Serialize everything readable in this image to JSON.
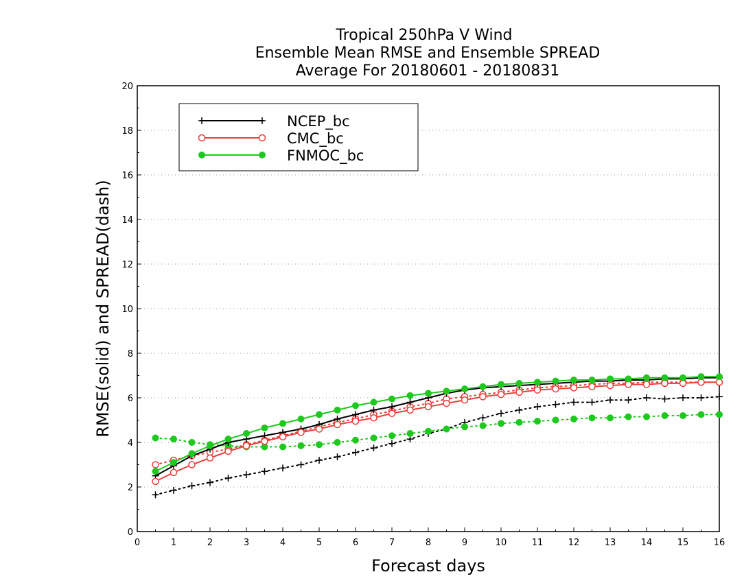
{
  "chart_data": {
    "type": "line",
    "title": [
      "Tropical 250hPa V Wind",
      "Ensemble Mean RMSE and Ensemble SPREAD",
      "Average For 20180601 - 20180831"
    ],
    "xlabel": "Forecast days",
    "ylabel": "RMSE(solid) and SPREAD(dash)",
    "xlim": [
      0,
      16
    ],
    "ylim": [
      0,
      20
    ],
    "xticks": [
      "0",
      "1",
      "2",
      "3",
      "4",
      "5",
      "6",
      "7",
      "8",
      "9",
      "10",
      "11",
      "12",
      "13",
      "14",
      "15",
      "16"
    ],
    "yticks": [
      "0",
      "2",
      "4",
      "6",
      "8",
      "10",
      "12",
      "14",
      "16",
      "18",
      "20"
    ],
    "grid": "horizontal dotted",
    "legend_position": "top-left",
    "x": [
      0.5,
      1,
      1.5,
      2,
      2.5,
      3,
      3.5,
      4,
      4.5,
      5,
      5.5,
      6,
      6.5,
      7,
      7.5,
      8,
      8.5,
      9,
      9.5,
      10,
      10.5,
      11,
      11.5,
      12,
      12.5,
      13,
      13.5,
      14,
      14.5,
      15,
      15.5,
      16
    ],
    "series": [
      {
        "name": "NCEP_bc",
        "color": "#000000",
        "marker": "plus",
        "rmse": [
          2.5,
          2.95,
          3.4,
          3.7,
          4.0,
          4.15,
          4.3,
          4.45,
          4.6,
          4.8,
          5.05,
          5.25,
          5.45,
          5.6,
          5.8,
          6.0,
          6.2,
          6.35,
          6.45,
          6.5,
          6.55,
          6.6,
          6.65,
          6.7,
          6.75,
          6.75,
          6.8,
          6.8,
          6.85,
          6.85,
          6.9,
          6.9
        ],
        "spread": [
          1.65,
          1.85,
          2.05,
          2.2,
          2.4,
          2.55,
          2.7,
          2.85,
          3.0,
          3.2,
          3.35,
          3.55,
          3.75,
          3.95,
          4.15,
          4.4,
          4.6,
          4.9,
          5.1,
          5.3,
          5.45,
          5.6,
          5.7,
          5.8,
          5.8,
          5.9,
          5.9,
          6.0,
          5.95,
          6.0,
          6.0,
          6.05
        ]
      },
      {
        "name": "CMC_bc",
        "color": "#e8403c",
        "marker": "open-circle",
        "rmse": [
          2.25,
          2.65,
          3.0,
          3.3,
          3.6,
          3.85,
          4.05,
          4.25,
          4.45,
          4.6,
          4.8,
          4.95,
          5.1,
          5.3,
          5.45,
          5.6,
          5.75,
          5.9,
          6.05,
          6.15,
          6.25,
          6.35,
          6.4,
          6.45,
          6.5,
          6.55,
          6.6,
          6.6,
          6.65,
          6.65,
          6.7,
          6.7
        ],
        "spread": [
          3.0,
          3.2,
          3.4,
          3.55,
          3.7,
          3.9,
          4.1,
          4.3,
          4.5,
          4.7,
          4.9,
          5.05,
          5.25,
          5.4,
          5.6,
          5.75,
          5.95,
          6.05,
          6.15,
          6.25,
          6.35,
          6.45,
          6.5,
          6.55,
          6.6,
          6.65,
          6.65,
          6.7,
          6.7,
          6.7,
          6.7,
          6.7
        ]
      },
      {
        "name": "FNMOC_bc",
        "color": "#1ec81e",
        "marker": "filled-circle",
        "rmse": [
          2.7,
          3.1,
          3.5,
          3.85,
          4.15,
          4.4,
          4.65,
          4.85,
          5.05,
          5.25,
          5.45,
          5.65,
          5.8,
          5.95,
          6.1,
          6.2,
          6.3,
          6.4,
          6.5,
          6.6,
          6.65,
          6.7,
          6.75,
          6.8,
          6.8,
          6.85,
          6.85,
          6.9,
          6.9,
          6.9,
          6.95,
          6.95
        ],
        "spread": [
          4.2,
          4.15,
          4.0,
          3.9,
          3.85,
          3.8,
          3.8,
          3.8,
          3.85,
          3.9,
          4.0,
          4.1,
          4.2,
          4.3,
          4.4,
          4.5,
          4.6,
          4.7,
          4.75,
          4.85,
          4.9,
          4.95,
          5.0,
          5.05,
          5.1,
          5.1,
          5.15,
          5.15,
          5.2,
          5.2,
          5.25,
          5.25
        ]
      }
    ]
  }
}
